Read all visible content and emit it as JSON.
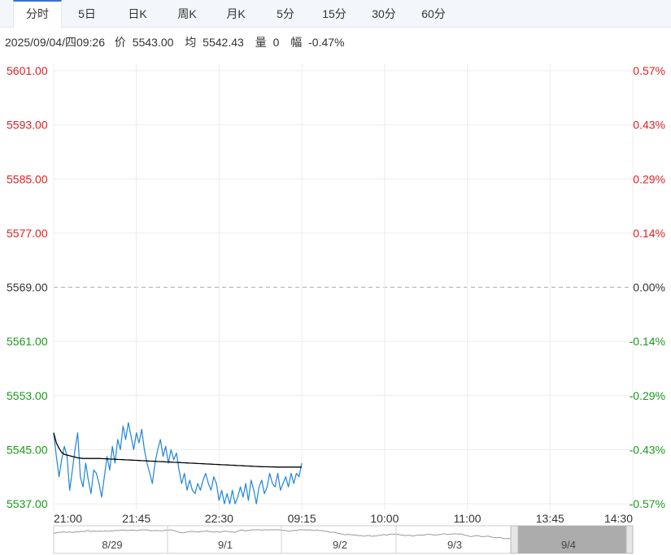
{
  "tabs": [
    {
      "label": "分时",
      "active": true
    },
    {
      "label": "5日",
      "active": false
    },
    {
      "label": "日K",
      "active": false
    },
    {
      "label": "周K",
      "active": false
    },
    {
      "label": "月K",
      "active": false
    },
    {
      "label": "5分",
      "active": false
    },
    {
      "label": "15分",
      "active": false
    },
    {
      "label": "30分",
      "active": false
    },
    {
      "label": "60分",
      "active": false
    }
  ],
  "info": {
    "datetime": "2025/09/04/四09:26",
    "price_label": "价",
    "price": "5543.00",
    "avg_label": "均",
    "avg": "5542.43",
    "volume_label": "量",
    "volume": "0",
    "change_label": "幅",
    "change": "-0.47%"
  },
  "colors": {
    "up": "#e02020",
    "down": "#1a9a1a",
    "flat": "#333333",
    "price_line": "#1f86d8",
    "avg_line": "#000000",
    "grid": "#ececec"
  },
  "chart_data": {
    "type": "line",
    "base_price": 5569.0,
    "ylim": [
      5537.0,
      5601.0
    ],
    "left_ticks": [
      "5601.00",
      "5593.00",
      "5585.00",
      "5577.00",
      "5569.00",
      "5561.00",
      "5553.00",
      "5545.00",
      "5537.00"
    ],
    "right_ticks": [
      "0.57%",
      "0.43%",
      "0.29%",
      "0.14%",
      "0.00%",
      "-0.14%",
      "-0.29%",
      "-0.43%",
      "-0.57%"
    ],
    "x_ticks": [
      "21:00",
      "21:45",
      "22:30",
      "09:15",
      "10:00",
      "11:00",
      "13:45",
      "14:30"
    ],
    "series": [
      {
        "key": "price",
        "values": [
          5547.5,
          5544.0,
          5541.0,
          5543.5,
          5545.5,
          5544.0,
          5539.0,
          5542.0,
          5545.0,
          5547.5,
          5541.0,
          5539.5,
          5543.0,
          5540.5,
          5538.5,
          5542.0,
          5541.5,
          5540.0,
          5538.0,
          5541.0,
          5544.0,
          5542.0,
          5545.5,
          5543.0,
          5546.5,
          5545.0,
          5548.5,
          5546.5,
          5549.0,
          5547.0,
          5545.0,
          5547.5,
          5546.0,
          5548.0,
          5545.0,
          5543.0,
          5541.5,
          5540.0,
          5543.0,
          5545.0,
          5546.5,
          5544.0,
          5545.5,
          5543.0,
          5545.0,
          5543.5,
          5544.5,
          5542.0,
          5540.0,
          5541.5,
          5539.0,
          5540.5,
          5539.0,
          5538.5,
          5540.0,
          5539.0,
          5540.5,
          5541.5,
          5540.0,
          5539.0,
          5541.0,
          5540.0,
          5537.5,
          5539.0,
          5537.0,
          5538.5,
          5537.0,
          5539.0,
          5537.0,
          5538.0,
          5539.5,
          5538.0,
          5540.0,
          5537.5,
          5540.5,
          5539.0,
          5537.0,
          5539.5,
          5540.5,
          5538.5,
          5539.5,
          5541.5,
          5540.0,
          5539.5,
          5541.5,
          5539.0,
          5540.0,
          5541.0,
          5539.5,
          5541.5,
          5540.0,
          5541.5,
          5541.0,
          5543.0
        ]
      },
      {
        "key": "avg",
        "values": [
          5547.5,
          5546.0,
          5545.2,
          5544.6,
          5544.3,
          5544.2,
          5544.1,
          5544.0,
          5543.9,
          5543.8,
          5543.75,
          5543.7,
          5543.7,
          5543.7,
          5543.7,
          5543.7,
          5543.7,
          5543.7,
          5543.68,
          5543.66,
          5543.64,
          5543.62,
          5543.6,
          5543.58,
          5543.56,
          5543.54,
          5543.52,
          5543.5,
          5543.48,
          5543.46,
          5543.44,
          5543.42,
          5543.4,
          5543.38,
          5543.36,
          5543.34,
          5543.32,
          5543.3,
          5543.28,
          5543.26,
          5543.24,
          5543.22,
          5543.2,
          5543.18,
          5543.16,
          5543.14,
          5543.12,
          5543.1,
          5543.08,
          5543.06,
          5543.04,
          5543.02,
          5543.0,
          5542.98,
          5542.96,
          5542.94,
          5542.92,
          5542.9,
          5542.88,
          5542.86,
          5542.84,
          5542.82,
          5542.8,
          5542.78,
          5542.76,
          5542.74,
          5542.72,
          5542.7,
          5542.68,
          5542.66,
          5542.64,
          5542.62,
          5542.6,
          5542.58,
          5542.56,
          5542.54,
          5542.52,
          5542.5,
          5542.49,
          5542.48,
          5542.47,
          5542.46,
          5542.45,
          5542.44,
          5542.43,
          5542.43,
          5542.43,
          5542.43,
          5542.43,
          5542.43,
          5542.43,
          5542.43,
          5542.43,
          5542.43
        ]
      }
    ],
    "grid": true,
    "navigator": {
      "labels": [
        "8/29",
        "9/1",
        "9/2",
        "9/3",
        "9/4"
      ],
      "selected": "9/4"
    }
  }
}
